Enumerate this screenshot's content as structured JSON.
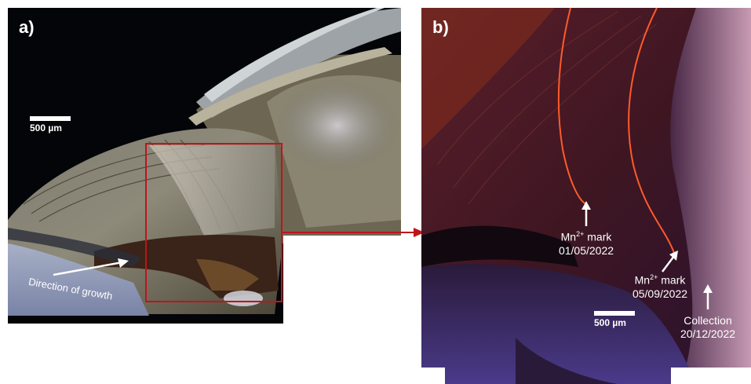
{
  "panel_a": {
    "letter": "a)",
    "scale_label": "500 µm",
    "growth_label": "Direction of growth"
  },
  "panel_b": {
    "letter": "b)",
    "scale_label": "500 µm",
    "mark1": {
      "line1_prefix": "Mn",
      "line1_sup": "2+",
      "line1_suffix": " mark",
      "date": "01/05/2022"
    },
    "mark2": {
      "line1_prefix": "Mn",
      "line1_sup": "2+",
      "line1_suffix": " mark",
      "date": "05/09/2022"
    },
    "collection": {
      "label": "Collection",
      "date": "20/12/2022"
    }
  },
  "colors": {
    "highlight_box": "#c0141c",
    "connector_arrow": "#c0141c",
    "mn_line": "#ff5a2a"
  }
}
